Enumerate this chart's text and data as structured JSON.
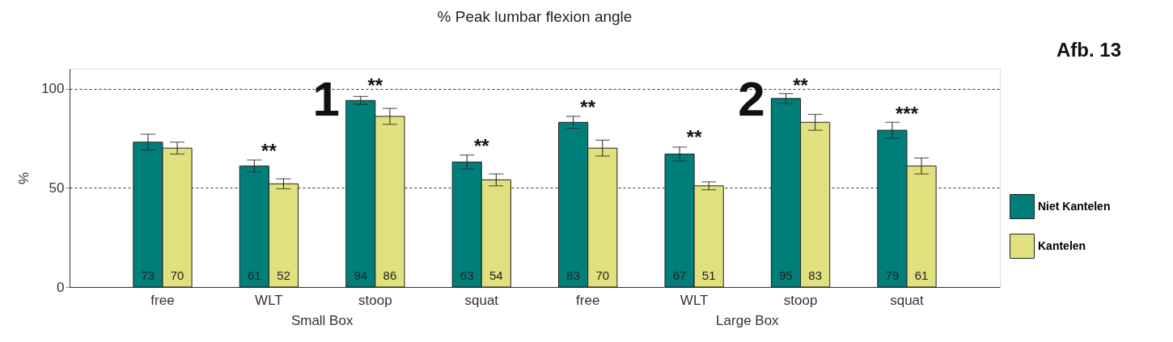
{
  "chart_data": {
    "type": "bar",
    "title": "% Peak lumbar flexion angle",
    "ylabel": "%",
    "categories": [
      "free",
      "WLT",
      "stoop",
      "squat",
      "free",
      "WLT",
      "stoop",
      "squat"
    ],
    "series": [
      {
        "name": "Niet Kantelen",
        "color": "#007f7a",
        "values": [
          73,
          61,
          94,
          63,
          83,
          67,
          95,
          79
        ],
        "errors": [
          4,
          3,
          2,
          3.5,
          3,
          3.5,
          2.5,
          4
        ]
      },
      {
        "name": "Kantelen",
        "color": "#e0e07e",
        "values": [
          70,
          52,
          86,
          54,
          70,
          51,
          83,
          61
        ],
        "errors": [
          3,
          2.5,
          4,
          3,
          4,
          2,
          4,
          4
        ]
      }
    ],
    "ylim": [
      0,
      110
    ],
    "yticks": [
      0,
      50,
      100
    ],
    "grid": "y",
    "legend": "right",
    "data_labels": true,
    "annotations": [
      "**",
      "**",
      "**",
      "**",
      "**",
      "**",
      "***",
      "Afb. 13",
      "1",
      "2",
      "Small Box",
      "Large Box"
    ]
  }
}
